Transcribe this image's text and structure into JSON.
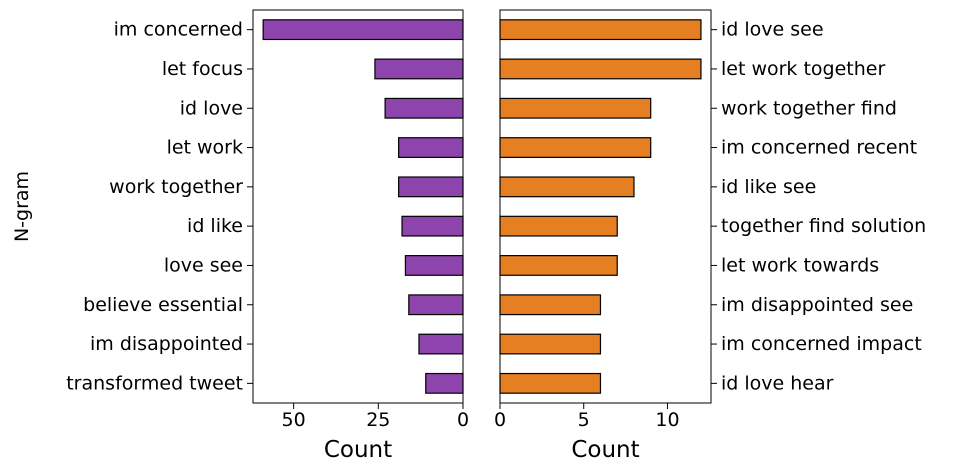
{
  "chart_data": [
    {
      "type": "bar",
      "orientation": "horizontal",
      "x_direction": "reversed",
      "categories": [
        "im concerned",
        "let focus",
        "id love",
        "let work",
        "work together",
        "id like",
        "love see",
        "believe essential",
        "im disappointed",
        "transformed tweet"
      ],
      "values": [
        59,
        26,
        23,
        19,
        19,
        18,
        17,
        16,
        13,
        11
      ],
      "xlabel": "Count",
      "ylabel": "N-gram",
      "xticks": [
        50,
        25,
        0
      ],
      "xlim": [
        0,
        62
      ],
      "color": "#8e44ad",
      "edgecolor": "#000000",
      "grid": false,
      "category_labels_side": "left"
    },
    {
      "type": "bar",
      "orientation": "horizontal",
      "categories": [
        "id love see",
        "let work together",
        "work together find",
        "im concerned recent",
        "id like see",
        "together find solution",
        "let work towards",
        "im disappointed see",
        "im concerned impact",
        "id love hear"
      ],
      "values": [
        12,
        12,
        9,
        9,
        8,
        7,
        7,
        6,
        6,
        6
      ],
      "xlabel": "Count",
      "ylabel": "",
      "xticks": [
        0,
        5,
        10
      ],
      "xlim": [
        0,
        12.6
      ],
      "color": "#e67e22",
      "edgecolor": "#000000",
      "grid": false,
      "category_labels_side": "right"
    }
  ]
}
